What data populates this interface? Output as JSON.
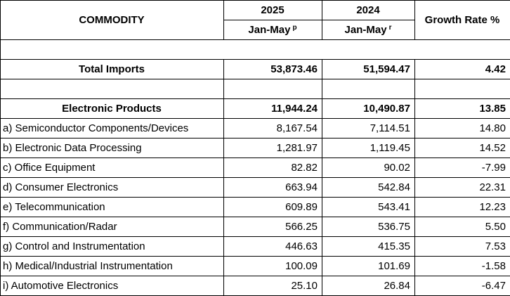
{
  "table": {
    "header": {
      "commodity": "COMMODITY",
      "col_2025_year": "2025",
      "col_2025_period": "Jan-May",
      "col_2025_note": "p",
      "col_2024_year": "2024",
      "col_2024_period": "Jan-May",
      "col_2024_note": "r",
      "growth": "Growth Rate %"
    },
    "total": {
      "label": "Total Imports",
      "v2025": "53,873.46",
      "v2024": "51,594.47",
      "growth": "4.42"
    },
    "group": {
      "label": "Electronic Products",
      "v2025": "11,944.24",
      "v2024": "10,490.87",
      "growth": "13.85"
    },
    "rows": [
      {
        "label": "a) Semiconductor Components/Devices",
        "v2025": "8,167.54",
        "v2024": "7,114.51",
        "growth": "14.80"
      },
      {
        "label": "b) Electronic Data Processing",
        "v2025": "1,281.97",
        "v2024": "1,119.45",
        "growth": "14.52"
      },
      {
        "label": "c) Office Equipment",
        "v2025": "82.82",
        "v2024": "90.02",
        "growth": "-7.99"
      },
      {
        "label": "d) Consumer Electronics",
        "v2025": "663.94",
        "v2024": "542.84",
        "growth": "22.31"
      },
      {
        "label": "e) Telecommunication",
        "v2025": "609.89",
        "v2024": "543.41",
        "growth": "12.23"
      },
      {
        "label": "f) Communication/Radar",
        "v2025": "566.25",
        "v2024": "536.75",
        "growth": "5.50"
      },
      {
        "label": "g) Control and Instrumentation",
        "v2025": "446.63",
        "v2024": "415.35",
        "growth": "7.53"
      },
      {
        "label": "h) Medical/Industrial Instrumentation",
        "v2025": "100.09",
        "v2024": "101.69",
        "growth": "-1.58"
      },
      {
        "label": "i) Automotive Electronics",
        "v2025": "25.10",
        "v2024": "26.84",
        "growth": "-6.47"
      }
    ]
  }
}
